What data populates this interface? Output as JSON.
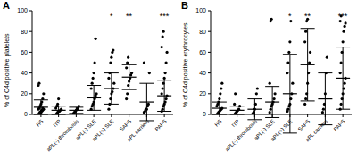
{
  "chart_data": [
    {
      "type": "scatter",
      "title": "A",
      "y_label": "% of C4d positive platelets",
      "categories": [
        "HS",
        "ITP",
        "aPL(-) thrombosis",
        "aPL(-) SLE",
        "aPL(+) SLE",
        "SAPS",
        "aPL carriers",
        "PAPS"
      ],
      "values": [
        [
          0,
          1,
          2,
          3,
          3,
          4,
          5,
          5,
          6,
          8,
          10,
          12,
          15,
          20,
          28,
          30,
          2,
          1,
          4,
          6
        ],
        [
          0,
          1,
          2,
          3,
          3,
          4,
          5,
          6,
          8,
          10,
          15
        ],
        [
          1,
          2,
          3,
          4,
          5,
          6,
          8
        ],
        [
          5,
          8,
          10,
          12,
          15,
          18,
          20,
          25,
          30,
          35,
          40,
          50,
          73
        ],
        [
          5,
          10,
          15,
          20,
          22,
          25,
          30,
          35,
          40,
          50,
          55,
          60,
          62
        ],
        [
          15,
          20,
          28,
          32,
          35,
          38,
          40,
          45,
          50,
          55
        ],
        [
          2,
          3,
          5,
          5,
          8,
          10,
          40,
          50
        ],
        [
          3,
          5,
          8,
          10,
          12,
          15,
          18,
          20,
          25,
          30,
          35,
          40,
          50,
          60,
          65,
          75,
          80
        ]
      ],
      "means": [
        7,
        4,
        4,
        16,
        25,
        36,
        12,
        18
      ],
      "sd": [
        7,
        4,
        3,
        12,
        15,
        12,
        18,
        15
      ],
      "annotations": [
        null,
        null,
        null,
        null,
        "*",
        "**",
        null,
        "***"
      ],
      "color": "#000000",
      "ylim": [
        0,
        100
      ],
      "yticks": [
        0,
        20,
        40,
        60,
        80,
        100
      ]
    },
    {
      "type": "scatter",
      "title": "B",
      "y_label": "% of C4d positive erythrocytes",
      "categories": [
        "HS",
        "ITP",
        "aPL(-) thrombosis",
        "aPL(-) SLE",
        "aPL(+) SLE",
        "SAPS",
        "aPL carriers",
        "PAPS"
      ],
      "values": [
        [
          0,
          1,
          2,
          3,
          4,
          5,
          6,
          8,
          10,
          12,
          15,
          20,
          25,
          30
        ],
        [
          0,
          1,
          2,
          3,
          4,
          5,
          8,
          10,
          20
        ],
        [
          0,
          1,
          2,
          5,
          10,
          20,
          25
        ],
        [
          2,
          5,
          8,
          10,
          12,
          15,
          20,
          30,
          90,
          92
        ],
        [
          3,
          5,
          8,
          10,
          15,
          20,
          30,
          40,
          50,
          60,
          70,
          90
        ],
        [
          10,
          15,
          20,
          30,
          40,
          50,
          60,
          70,
          80,
          90,
          92
        ],
        [
          2,
          5,
          10,
          20,
          40,
          55
        ],
        [
          5,
          10,
          15,
          20,
          25,
          30,
          35,
          40,
          50,
          60,
          70,
          80,
          85,
          88,
          90,
          95
        ]
      ],
      "means": [
        6,
        4,
        5,
        12,
        20,
        48,
        15,
        35
      ],
      "sd": [
        6,
        4,
        10,
        15,
        38,
        35,
        25,
        30
      ],
      "annotations": [
        null,
        null,
        null,
        null,
        "*",
        "**",
        null,
        "***"
      ],
      "color": "#000000",
      "ylim": [
        0,
        100
      ],
      "yticks": [
        0,
        20,
        40,
        60,
        80,
        100
      ]
    }
  ]
}
